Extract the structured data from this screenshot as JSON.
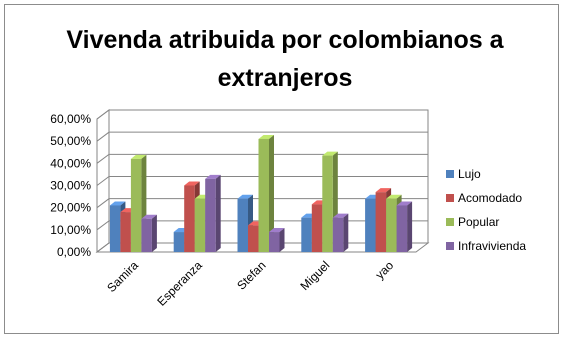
{
  "chart_data": {
    "type": "bar",
    "variant": "3d-clustered-column",
    "title": "Vivenda atribuida por colombianos a extranjeros",
    "xlabel": "",
    "ylabel": "",
    "ylim": [
      0,
      60
    ],
    "yticks": [
      "0,00%",
      "10,00%",
      "20,00%",
      "30,00%",
      "40,00%",
      "50,00%",
      "60,00%"
    ],
    "grid": true,
    "legend_position": "right",
    "categories": [
      "Samira",
      "Esperanza",
      "Stefan",
      "Miguel",
      "yao"
    ],
    "series": [
      {
        "name": "Lujo",
        "color": "#4f81bd",
        "values": [
          21,
          9,
          24,
          15.5,
          24
        ]
      },
      {
        "name": "Acomodado",
        "color": "#c0504d",
        "values": [
          18,
          30,
          12,
          21.5,
          27
        ]
      },
      {
        "name": "Popular",
        "color": "#9bbb59",
        "values": [
          42,
          24,
          51,
          43.5,
          24
        ]
      },
      {
        "name": "Infravivienda",
        "color": "#8064a2",
        "values": [
          15,
          33,
          9,
          15.5,
          21
        ]
      }
    ]
  }
}
